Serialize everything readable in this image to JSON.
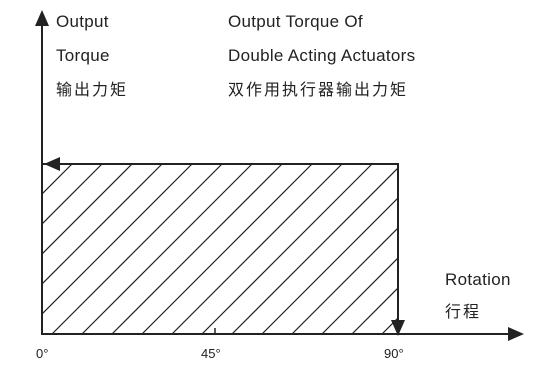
{
  "y_axis_label": {
    "line1": "Output",
    "line2": "Torque",
    "line3": "输出力矩"
  },
  "title": {
    "line1": "Output  Torque Of",
    "line2": "Double  Acting Actuators",
    "line3": "双作用执行器输出力矩"
  },
  "x_axis_label": {
    "line1": "Rotation",
    "line2": "行程"
  },
  "x_ticks": [
    "0°",
    "45°",
    "90°"
  ],
  "colors": {
    "line": "#222222",
    "background": "#ffffff"
  }
}
